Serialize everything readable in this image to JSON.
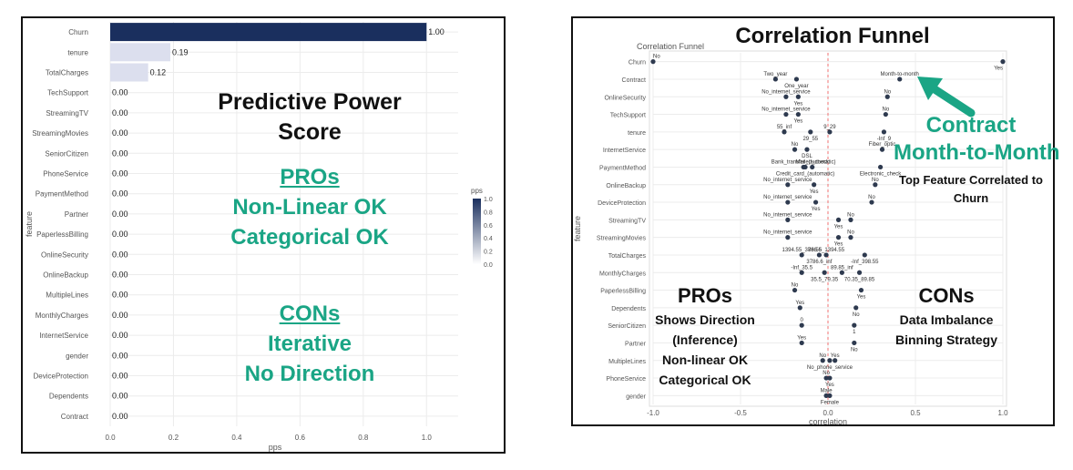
{
  "colors": {
    "bar_dark": "#1a2f5e",
    "bar_light": "#dcdfee",
    "grid": "#ececec",
    "point": "#2e3a4f",
    "refline": "#f07070",
    "overlay_black": "#111111",
    "overlay_green": "#1aa585",
    "axis_text": "#555555"
  },
  "left": {
    "overlay": {
      "title_lines": [
        "Predictive Power",
        "Score"
      ],
      "pros_heading": "PROs",
      "pros_lines": [
        "Non-Linear OK",
        "Categorical OK"
      ],
      "cons_heading": "CONs",
      "cons_lines": [
        "Iterative",
        "No Direction"
      ]
    },
    "legend": {
      "title": "pps",
      "ticks": [
        "1.0",
        "0.8",
        "0.6",
        "0.4",
        "0.2",
        "0.0"
      ]
    }
  },
  "right": {
    "overlay": {
      "title": "Correlation Funnel",
      "callout_lines": [
        "Contract",
        "Month-to-Month"
      ],
      "callout_sub_lines": [
        "Top Feature Correlated to",
        "Churn"
      ],
      "pros_heading": "PROs",
      "pros_lines": [
        "Shows Direction",
        "(Inference)",
        "Non-linear OK",
        "Categorical OK"
      ],
      "cons_heading": "CONs",
      "cons_lines": [
        "Data Imbalance",
        "Binning Strategy"
      ]
    }
  },
  "chart_data": [
    {
      "type": "bar",
      "orientation": "horizontal",
      "xlabel": "pps",
      "ylabel": "feature",
      "xlim": [
        0,
        1.1
      ],
      "x_ticks": [
        "0.0",
        "0.2",
        "0.4",
        "0.6",
        "0.8",
        "1.0"
      ],
      "categories": [
        "Churn",
        "tenure",
        "TotalCharges",
        "TechSupport",
        "StreamingTV",
        "StreamingMovies",
        "SeniorCitizen",
        "PhoneService",
        "PaymentMethod",
        "Partner",
        "PaperlessBilling",
        "OnlineSecurity",
        "OnlineBackup",
        "MultipleLines",
        "MonthlyCharges",
        "InternetService",
        "gender",
        "DeviceProtection",
        "Dependents",
        "Contract"
      ],
      "values": [
        1.0,
        0.19,
        0.12,
        0,
        0,
        0,
        0,
        0,
        0,
        0,
        0,
        0,
        0,
        0,
        0,
        0,
        0,
        0,
        0,
        0
      ],
      "labels": [
        "1.00",
        "0.19",
        "0.12",
        "0.00",
        "0.00",
        "0.00",
        "0.00",
        "0.00",
        "0.00",
        "0.00",
        "0.00",
        "0.00",
        "0.00",
        "0.00",
        "0.00",
        "0.00",
        "0.00",
        "0.00",
        "0.00",
        "0.00"
      ],
      "grid": true,
      "legend": "right"
    },
    {
      "type": "scatter",
      "title": "Correlation Funnel",
      "xlabel": "correlation",
      "ylabel": "feature",
      "xlim": [
        -1.0,
        1.0
      ],
      "x_ticks": [
        "-1.0",
        "-0.5",
        "0.0",
        "0.5",
        "1.0"
      ],
      "reference_line_x": 0,
      "grid": true,
      "features": [
        "Churn",
        "Contract",
        "OnlineSecurity",
        "TechSupport",
        "tenure",
        "InternetService",
        "PaymentMethod",
        "OnlineBackup",
        "DeviceProtection",
        "StreamingTV",
        "StreamingMovies",
        "TotalCharges",
        "MonthlyCharges",
        "PaperlessBilling",
        "Dependents",
        "SeniorCitizen",
        "Partner",
        "MultipleLines",
        "PhoneService",
        "gender"
      ],
      "points": [
        {
          "feature": "Churn",
          "x": -1.0,
          "label": "No"
        },
        {
          "feature": "Churn",
          "x": 1.0,
          "label": "Yes"
        },
        {
          "feature": "Contract",
          "x": -0.3,
          "label": "Two_year"
        },
        {
          "feature": "Contract",
          "x": -0.18,
          "label": "One_year"
        },
        {
          "feature": "Contract",
          "x": 0.41,
          "label": "Month-to-month"
        },
        {
          "feature": "OnlineSecurity",
          "x": -0.24,
          "label": "No_internet_service"
        },
        {
          "feature": "OnlineSecurity",
          "x": -0.17,
          "label": "Yes"
        },
        {
          "feature": "OnlineSecurity",
          "x": 0.34,
          "label": "No"
        },
        {
          "feature": "TechSupport",
          "x": -0.24,
          "label": "No_internet_service"
        },
        {
          "feature": "TechSupport",
          "x": -0.17,
          "label": "Yes"
        },
        {
          "feature": "TechSupport",
          "x": 0.33,
          "label": "No"
        },
        {
          "feature": "tenure",
          "x": -0.25,
          "label": "55_inf"
        },
        {
          "feature": "tenure",
          "x": -0.1,
          "label": "29_55"
        },
        {
          "feature": "tenure",
          "x": 0.01,
          "label": "9_29"
        },
        {
          "feature": "tenure",
          "x": 0.32,
          "label": "-Inf_9"
        },
        {
          "feature": "InternetService",
          "x": -0.19,
          "label": "No"
        },
        {
          "feature": "InternetService",
          "x": -0.12,
          "label": "DSL"
        },
        {
          "feature": "InternetService",
          "x": 0.31,
          "label": "Fiber_optic"
        },
        {
          "feature": "PaymentMethod",
          "x": -0.14,
          "label": "Bank_transfer_(automatic)"
        },
        {
          "feature": "PaymentMethod",
          "x": -0.13,
          "label": "Credit_card_(automatic)"
        },
        {
          "feature": "PaymentMethod",
          "x": -0.09,
          "label": "Mailed_check"
        },
        {
          "feature": "PaymentMethod",
          "x": 0.3,
          "label": "Electronic_check"
        },
        {
          "feature": "OnlineBackup",
          "x": -0.23,
          "label": "No_internet_service"
        },
        {
          "feature": "OnlineBackup",
          "x": -0.08,
          "label": "Yes"
        },
        {
          "feature": "OnlineBackup",
          "x": 0.27,
          "label": "No"
        },
        {
          "feature": "DeviceProtection",
          "x": -0.23,
          "label": "No_internet_service"
        },
        {
          "feature": "DeviceProtection",
          "x": -0.07,
          "label": "Yes"
        },
        {
          "feature": "DeviceProtection",
          "x": 0.25,
          "label": "No"
        },
        {
          "feature": "StreamingTV",
          "x": -0.23,
          "label": "No_internet_service"
        },
        {
          "feature": "StreamingTV",
          "x": 0.06,
          "label": "Yes"
        },
        {
          "feature": "StreamingTV",
          "x": 0.13,
          "label": "No"
        },
        {
          "feature": "StreamingMovies",
          "x": -0.23,
          "label": "No_internet_service"
        },
        {
          "feature": "StreamingMovies",
          "x": 0.06,
          "label": "Yes"
        },
        {
          "feature": "StreamingMovies",
          "x": 0.13,
          "label": "No"
        },
        {
          "feature": "TotalCharges",
          "x": -0.15,
          "label": "1394.55_3786.6"
        },
        {
          "feature": "TotalCharges",
          "x": -0.05,
          "label": "3786.6_inf"
        },
        {
          "feature": "TotalCharges",
          "x": -0.01,
          "label": "86.55_1394.55"
        },
        {
          "feature": "TotalCharges",
          "x": 0.21,
          "label": "-Inf_398.55"
        },
        {
          "feature": "MonthlyCharges",
          "x": -0.15,
          "label": "-Inf_35.5"
        },
        {
          "feature": "MonthlyCharges",
          "x": -0.02,
          "label": "35.5_79.35"
        },
        {
          "feature": "MonthlyCharges",
          "x": 0.08,
          "label": "89.85_inf"
        },
        {
          "feature": "MonthlyCharges",
          "x": 0.18,
          "label": "70.35_89.85"
        },
        {
          "feature": "PaperlessBilling",
          "x": -0.19,
          "label": "No"
        },
        {
          "feature": "PaperlessBilling",
          "x": 0.19,
          "label": "Yes"
        },
        {
          "feature": "Dependents",
          "x": -0.16,
          "label": "Yes"
        },
        {
          "feature": "Dependents",
          "x": 0.16,
          "label": "No"
        },
        {
          "feature": "SeniorCitizen",
          "x": -0.15,
          "label": "0"
        },
        {
          "feature": "SeniorCitizen",
          "x": 0.15,
          "label": "1"
        },
        {
          "feature": "Partner",
          "x": -0.15,
          "label": "Yes"
        },
        {
          "feature": "Partner",
          "x": 0.15,
          "label": "No"
        },
        {
          "feature": "MultipleLines",
          "x": -0.03,
          "label": "No"
        },
        {
          "feature": "MultipleLines",
          "x": 0.01,
          "label": "No_phone_service"
        },
        {
          "feature": "MultipleLines",
          "x": 0.04,
          "label": "Yes"
        },
        {
          "feature": "PhoneService",
          "x": -0.01,
          "label": "No"
        },
        {
          "feature": "PhoneService",
          "x": 0.01,
          "label": "Yes"
        },
        {
          "feature": "gender",
          "x": -0.01,
          "label": "Male"
        },
        {
          "feature": "gender",
          "x": 0.01,
          "label": "Female"
        }
      ]
    }
  ]
}
